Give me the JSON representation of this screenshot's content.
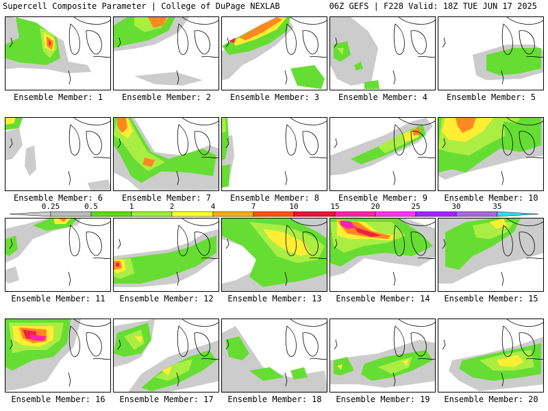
{
  "header": {
    "left_title": "Supercell Composite Parameter | College of DuPage NEXLAB",
    "right_title": "06Z GEFS | F228 Valid: 18Z TUE JUN 17 2025"
  },
  "label_prefix": "Ensemble Member:",
  "members": [
    {
      "id": 1,
      "label": "Ensemble Member: 1"
    },
    {
      "id": 2,
      "label": "Ensemble Member: 2"
    },
    {
      "id": 3,
      "label": "Ensemble Member: 3"
    },
    {
      "id": 4,
      "label": "Ensemble Member: 4"
    },
    {
      "id": 5,
      "label": "Ensemble Member: 5"
    },
    {
      "id": 6,
      "label": "Ensemble Member: 6"
    },
    {
      "id": 7,
      "label": "Ensemble Member: 7"
    },
    {
      "id": 8,
      "label": "Ensemble Member: 8"
    },
    {
      "id": 9,
      "label": "Ensemble Member: 9"
    },
    {
      "id": 10,
      "label": "Ensemble Member: 10"
    },
    {
      "id": 11,
      "label": "Ensemble Member: 11"
    },
    {
      "id": 12,
      "label": "Ensemble Member: 12"
    },
    {
      "id": 13,
      "label": "Ensemble Member: 13"
    },
    {
      "id": 14,
      "label": "Ensemble Member: 14"
    },
    {
      "id": 15,
      "label": "Ensemble Member: 15"
    },
    {
      "id": 16,
      "label": "Ensemble Member: 16"
    },
    {
      "id": 17,
      "label": "Ensemble Member: 17"
    },
    {
      "id": 18,
      "label": "Ensemble Member: 18"
    },
    {
      "id": 19,
      "label": "Ensemble Member: 19"
    },
    {
      "id": 20,
      "label": "Ensemble Member: 20"
    }
  ],
  "colorbar": {
    "ticks": [
      "0.25",
      "0.5",
      "1",
      "2",
      "4",
      "7",
      "10",
      "15",
      "20",
      "25",
      "30",
      "35"
    ],
    "colors": [
      "#cccccc",
      "#bbbbbb",
      "#55dd22",
      "#99ee44",
      "#ffff33",
      "#ffaa22",
      "#ff5500",
      "#ee1133",
      "#ff22aa",
      "#ff33ff",
      "#aa22ff",
      "#aa66dd",
      "#33ddff"
    ]
  }
}
